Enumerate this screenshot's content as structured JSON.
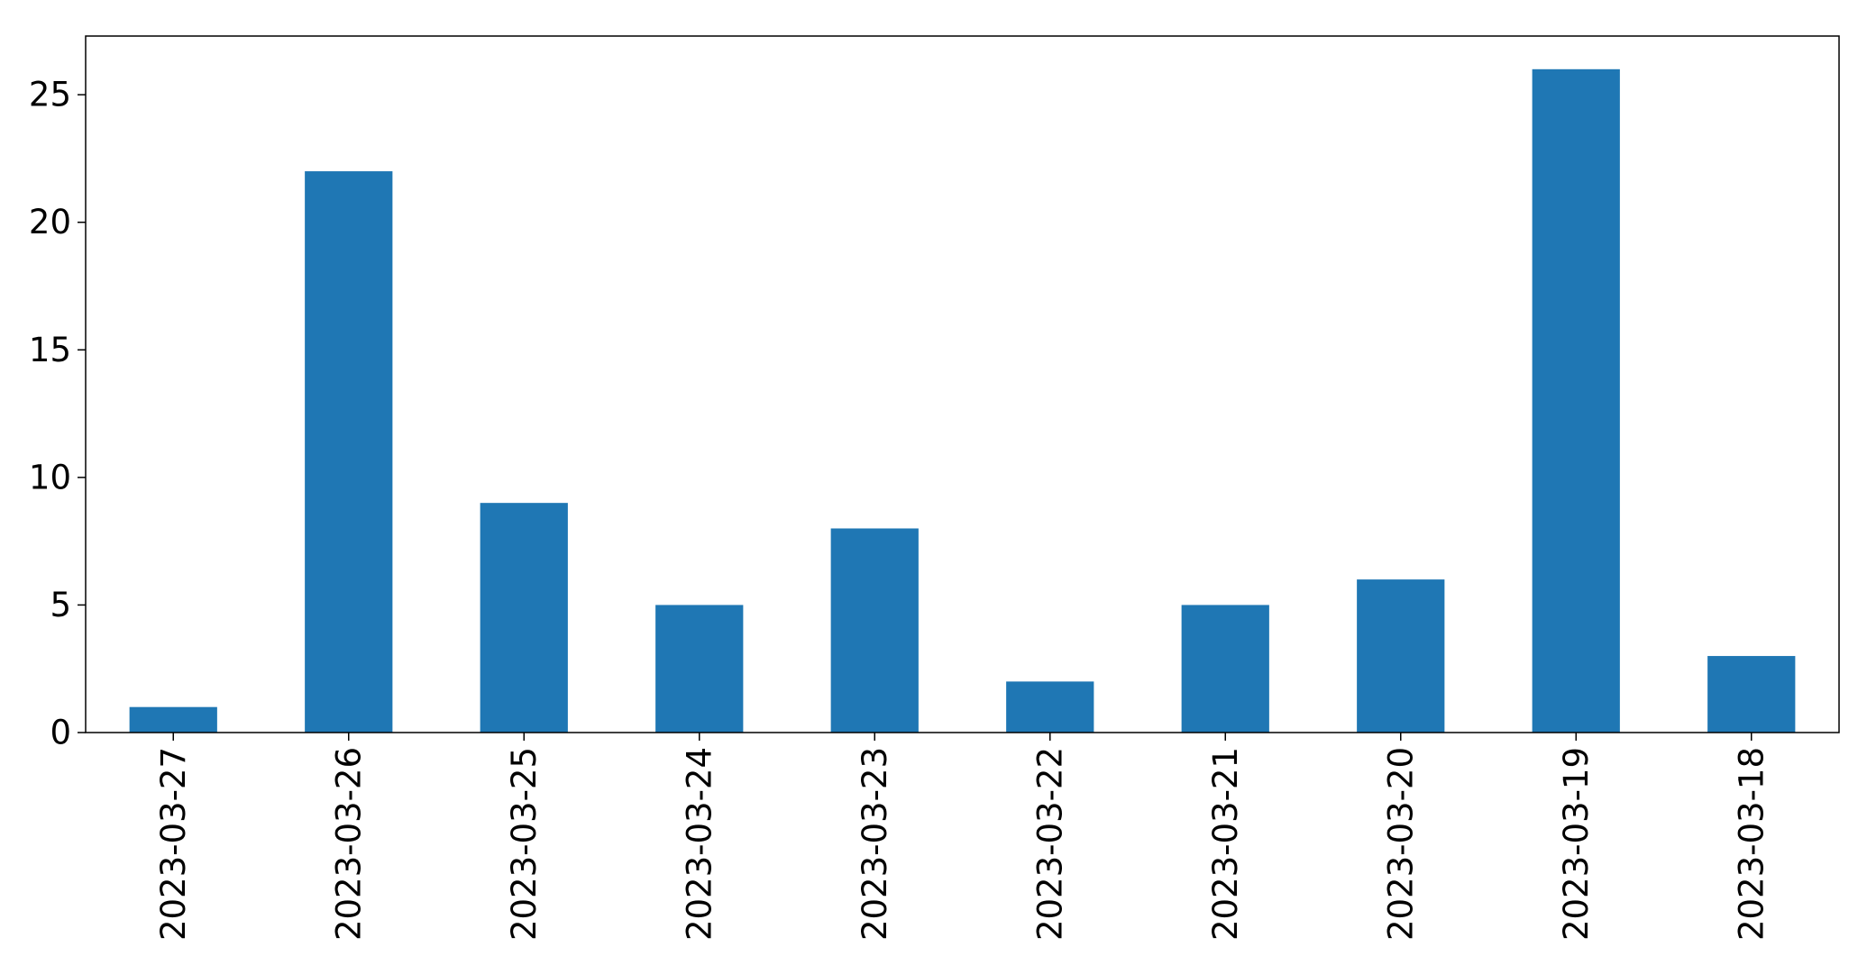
{
  "chart_data": {
    "type": "bar",
    "title": "",
    "xlabel": "",
    "ylabel": "",
    "categories": [
      "2023-03-27",
      "2023-03-26",
      "2023-03-25",
      "2023-03-24",
      "2023-03-23",
      "2023-03-22",
      "2023-03-21",
      "2023-03-20",
      "2023-03-19",
      "2023-03-18"
    ],
    "values": [
      1,
      22,
      9,
      5,
      8,
      2,
      5,
      6,
      26,
      3
    ],
    "ylim": [
      0,
      27.3
    ],
    "yticks": [
      "0",
      "5",
      "10",
      "15",
      "20",
      "25"
    ],
    "bar_color": "#1f77b4",
    "grid": false,
    "legend": "none"
  }
}
